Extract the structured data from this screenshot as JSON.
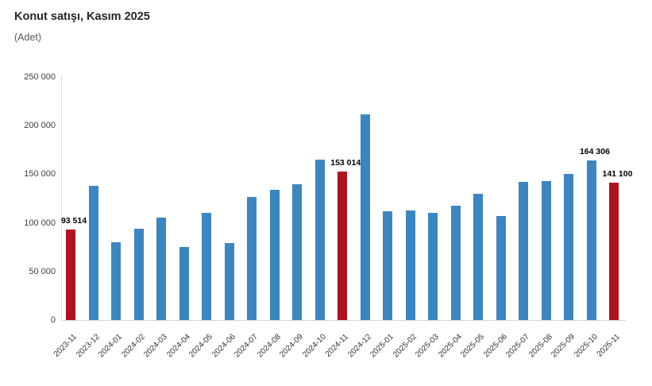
{
  "header": {
    "title": "Konut satışı, Kasım 2025",
    "subtitle": "(Adet)"
  },
  "chart_data": {
    "type": "bar",
    "title": "Konut satışı, Kasım 2025",
    "unit_label": "(Adet)",
    "xlabel": "",
    "ylabel": "",
    "ylim": [
      0,
      250000
    ],
    "ytick_labels": [
      "0",
      "50 000",
      "100 000",
      "150 000",
      "200 000",
      "250 000"
    ],
    "ytick_values": [
      0,
      50000,
      100000,
      150000,
      200000,
      250000
    ],
    "grid": false,
    "legend": false,
    "categories": [
      "2023-11",
      "2023-12",
      "2024-01",
      "2024-02",
      "2024-03",
      "2024-04",
      "2024-05",
      "2024-06",
      "2024-07",
      "2024-08",
      "2024-09",
      "2024-10",
      "2024-11",
      "2024-12",
      "2025-01",
      "2025-02",
      "2025-03",
      "2025-04",
      "2025-05",
      "2025-06",
      "2025-07",
      "2025-08",
      "2025-09",
      "2025-10",
      "2025-11"
    ],
    "values": [
      93514,
      138000,
      80000,
      94000,
      105000,
      75000,
      110000,
      79000,
      127000,
      134000,
      140000,
      165000,
      153014,
      212000,
      112000,
      113000,
      110000,
      118000,
      130000,
      107000,
      142000,
      143000,
      150000,
      164306,
      141100
    ],
    "point_labels": [
      "93 514",
      null,
      null,
      null,
      null,
      null,
      null,
      null,
      null,
      null,
      null,
      null,
      "153 014",
      null,
      null,
      null,
      null,
      null,
      null,
      null,
      null,
      null,
      null,
      "164 306",
      "141 100"
    ],
    "highlight_indices": [
      0,
      12,
      24
    ],
    "colors": {
      "bar": "#3b86c0",
      "highlight": "#b0131f",
      "axis_line": "#d9d9d9",
      "tick_text": "#404040",
      "x_tick_text": "#333333",
      "value_label_text": "#000000",
      "title_text": "#262626",
      "subtitle_text": "#595959"
    }
  }
}
